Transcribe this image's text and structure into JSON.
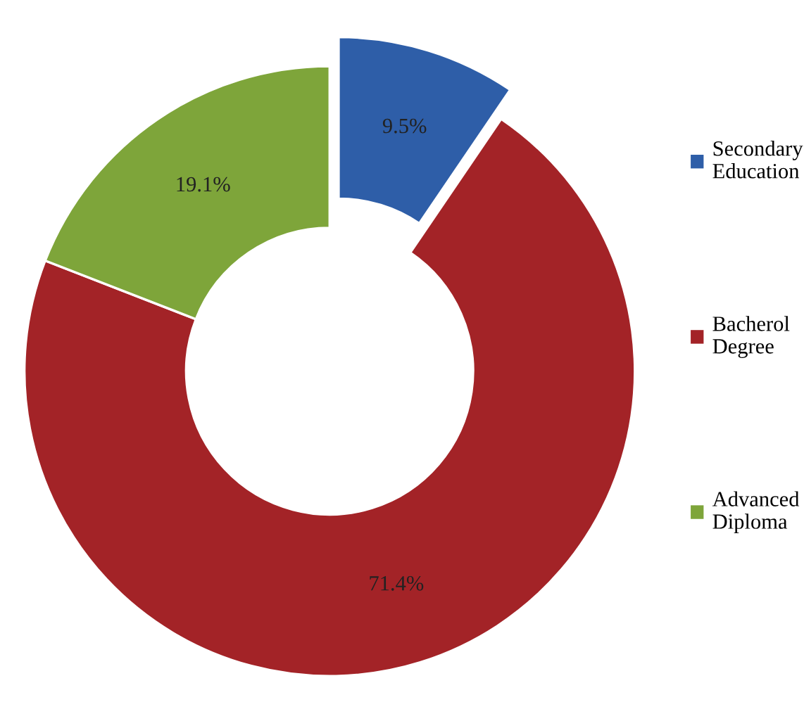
{
  "chart_data": {
    "type": "donut",
    "categories": [
      "Secondary Education",
      "Bacherol Degree",
      "Advanced Diploma"
    ],
    "values": [
      9.5,
      71.4,
      19.1
    ],
    "colors": [
      "#2e5ea8",
      "#a32327",
      "#7ea53a"
    ],
    "value_labels": [
      "9.5%",
      "71.4%",
      "19.1%"
    ],
    "legend": "right"
  }
}
